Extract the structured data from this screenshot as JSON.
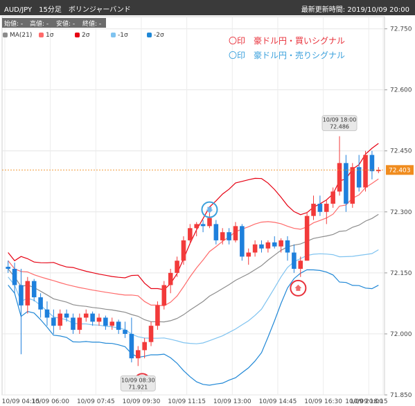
{
  "header": {
    "title": "AUD/JPY　15分足　ボリンジャーバンド",
    "updated": "最新更新時間: 2019/10/09 20:00"
  },
  "ohlc_labels": {
    "open": "始値: -",
    "high": "高値: -",
    "low": "安値: -",
    "close": "終値: -"
  },
  "legend": [
    {
      "label": "MA(21)",
      "color": "#8c8c8c"
    },
    {
      "label": "1σ",
      "color": "#ff6a6a"
    },
    {
      "label": "2σ",
      "color": "#e60012"
    },
    {
      "label": "-1σ",
      "color": "#7fc3f0"
    },
    {
      "label": "-2σ",
      "color": "#1f87d6"
    }
  ],
  "signals": {
    "buy_text": "〇印　豪ドル円・買いシグナル",
    "sell_text": "〇印　豪ドル円・売りシグナル",
    "buy_color": "#e8303a",
    "sell_color": "#3aa0dc"
  },
  "chart_data": {
    "type": "candlestick",
    "ylim": [
      71.85,
      72.78
    ],
    "y_ticks": [
      "72.750",
      "72.600",
      "72.450",
      "72.300",
      "72.150",
      "72.000",
      "71.850"
    ],
    "x_ticks": [
      "10/09 04:15",
      "10/09 06:00",
      "10/09 07:45",
      "10/09 09:30",
      "10/09 11:15",
      "10/09 13:00",
      "10/09 14:45",
      "10/09 16:30",
      "10/09 18:15",
      "10/09 20:00"
    ],
    "last_price": "72.403",
    "up_color": "#f23a3a",
    "down_color": "#1e80dc",
    "candles": [
      [
        72.165,
        72.18,
        72.15,
        72.16
      ],
      [
        72.16,
        72.175,
        72.1,
        72.12
      ],
      [
        72.12,
        72.16,
        71.95,
        72.07
      ],
      [
        72.07,
        72.14,
        72.05,
        72.13
      ],
      [
        72.13,
        72.135,
        72.08,
        72.09
      ],
      [
        72.09,
        72.1,
        72.04,
        72.06
      ],
      [
        72.06,
        72.08,
        72.02,
        72.04
      ],
      [
        72.04,
        72.06,
        72.0,
        72.02
      ],
      [
        72.02,
        72.06,
        72.01,
        72.05
      ],
      [
        72.05,
        72.06,
        72.03,
        72.04
      ],
      [
        72.04,
        72.05,
        72.0,
        72.01
      ],
      [
        72.01,
        72.05,
        72.0,
        72.04
      ],
      [
        72.04,
        72.06,
        72.03,
        72.05
      ],
      [
        72.05,
        72.055,
        72.02,
        72.03
      ],
      [
        72.03,
        72.05,
        72.02,
        72.04
      ],
      [
        72.04,
        72.045,
        72.01,
        72.02
      ],
      [
        72.02,
        72.04,
        72.01,
        72.03
      ],
      [
        72.03,
        72.035,
        72.0,
        72.01
      ],
      [
        72.01,
        72.03,
        71.99,
        72.0
      ],
      [
        72.0,
        72.04,
        71.93,
        71.94
      ],
      [
        71.94,
        71.97,
        71.921,
        71.96
      ],
      [
        71.96,
        71.99,
        71.94,
        71.98
      ],
      [
        71.98,
        72.03,
        71.97,
        72.02
      ],
      [
        72.02,
        72.08,
        72.01,
        72.07
      ],
      [
        72.07,
        72.13,
        72.06,
        72.12
      ],
      [
        72.12,
        72.16,
        72.1,
        72.15
      ],
      [
        72.15,
        72.19,
        72.14,
        72.18
      ],
      [
        72.18,
        72.24,
        72.17,
        72.23
      ],
      [
        72.23,
        72.27,
        72.22,
        72.26
      ],
      [
        72.26,
        72.275,
        72.24,
        72.27
      ],
      [
        72.27,
        72.28,
        72.25,
        72.265
      ],
      [
        72.265,
        72.3,
        72.26,
        72.285
      ],
      [
        72.27,
        72.28,
        72.22,
        72.23
      ],
      [
        72.23,
        72.26,
        72.22,
        72.25
      ],
      [
        72.25,
        72.26,
        72.22,
        72.23
      ],
      [
        72.23,
        72.275,
        72.225,
        72.265
      ],
      [
        72.265,
        72.27,
        72.18,
        72.19
      ],
      [
        72.19,
        72.21,
        72.17,
        72.2
      ],
      [
        72.2,
        72.23,
        72.19,
        72.22
      ],
      [
        72.22,
        72.23,
        72.2,
        72.21
      ],
      [
        72.21,
        72.23,
        72.2,
        72.225
      ],
      [
        72.225,
        72.24,
        72.21,
        72.215
      ],
      [
        72.215,
        72.235,
        72.2,
        72.23
      ],
      [
        72.23,
        72.24,
        72.18,
        72.2
      ],
      [
        72.2,
        72.22,
        72.15,
        72.16
      ],
      [
        72.16,
        72.19,
        72.14,
        72.18
      ],
      [
        72.18,
        72.3,
        72.18,
        72.29
      ],
      [
        72.29,
        72.34,
        72.28,
        72.32
      ],
      [
        72.32,
        72.34,
        72.29,
        72.3
      ],
      [
        72.3,
        72.33,
        72.27,
        72.32
      ],
      [
        72.32,
        72.36,
        72.31,
        72.35
      ],
      [
        72.35,
        72.486,
        72.34,
        72.42
      ],
      [
        72.42,
        72.44,
        72.3,
        72.32
      ],
      [
        72.32,
        72.42,
        72.31,
        72.41
      ],
      [
        72.41,
        72.44,
        72.35,
        72.36
      ],
      [
        72.36,
        72.45,
        72.35,
        72.44
      ],
      [
        72.44,
        72.45,
        72.38,
        72.4
      ],
      [
        72.4,
        72.41,
        72.395,
        72.403
      ]
    ],
    "annotations": [
      {
        "text": "10/09 18:00\n72.486",
        "candle": 51,
        "price": 72.486,
        "position": "above"
      },
      {
        "text": "10/09 08:30\n71.921",
        "candle": 20,
        "price": 71.921,
        "position": "below"
      }
    ],
    "signal_markers": [
      {
        "type": "sell",
        "candle": 31,
        "price": 72.285
      },
      {
        "type": "buy",
        "candle": 20,
        "price": 71.921
      },
      {
        "type": "buy",
        "candle": 44,
        "price": 72.15
      }
    ]
  }
}
